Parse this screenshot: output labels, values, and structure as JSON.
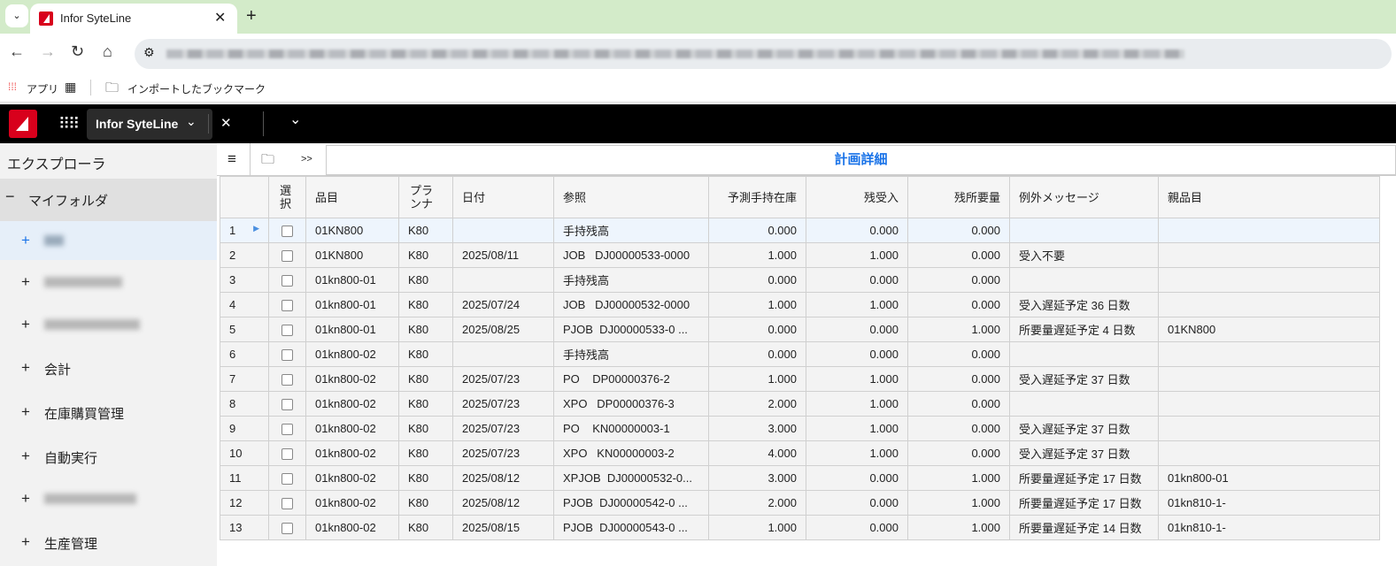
{
  "browser": {
    "tab_title": "Infor SyteLine",
    "bookmarks": [
      "アプリ",
      "インポートしたブックマーク"
    ]
  },
  "app": {
    "tab_label": "Infor SyteLine"
  },
  "sidebar": {
    "title": "エクスプローラ",
    "root": "マイフォルダ",
    "items": [
      {
        "label": "",
        "blurred": true
      },
      {
        "label": "",
        "blurred": true
      },
      {
        "label": "",
        "blurred": true
      },
      {
        "label": "会計"
      },
      {
        "label": "在庫購買管理"
      },
      {
        "label": "自動実行"
      },
      {
        "label": "",
        "blurred": true
      },
      {
        "label": "生産管理"
      }
    ]
  },
  "toolbar": {
    "expand": ">>",
    "form_title": "計画詳細"
  },
  "grid": {
    "headers": [
      "",
      "選択",
      "品目",
      "プランナ",
      "日付",
      "参照",
      "予測手持在庫",
      "残受入",
      "残所要量",
      "例外メッセージ",
      "親品目"
    ],
    "rows": [
      [
        "1",
        "01KN800",
        "K80",
        "",
        "手持残高",
        "0.000",
        "0.000",
        "0.000",
        "",
        ""
      ],
      [
        "2",
        "01KN800",
        "K80",
        "2025/08/11",
        "JOB   DJ00000533-0000",
        "1.000",
        "1.000",
        "0.000",
        "受入不要",
        ""
      ],
      [
        "3",
        "01kn800-01",
        "K80",
        "",
        "手持残高",
        "0.000",
        "0.000",
        "0.000",
        "",
        ""
      ],
      [
        "4",
        "01kn800-01",
        "K80",
        "2025/07/24",
        "JOB   DJ00000532-0000",
        "1.000",
        "1.000",
        "0.000",
        "受入遅延予定 36 日数",
        ""
      ],
      [
        "5",
        "01kn800-01",
        "K80",
        "2025/08/25",
        "PJOB  DJ00000533-0 ...",
        "0.000",
        "0.000",
        "1.000",
        "所要量遅延予定 4 日数",
        "01KN800"
      ],
      [
        "6",
        "01kn800-02",
        "K80",
        "",
        "手持残高",
        "0.000",
        "0.000",
        "0.000",
        "",
        ""
      ],
      [
        "7",
        "01kn800-02",
        "K80",
        "2025/07/23",
        "PO    DP00000376-2",
        "1.000",
        "1.000",
        "0.000",
        "受入遅延予定 37 日数",
        ""
      ],
      [
        "8",
        "01kn800-02",
        "K80",
        "2025/07/23",
        "XPO   DP00000376-3",
        "2.000",
        "1.000",
        "0.000",
        "",
        ""
      ],
      [
        "9",
        "01kn800-02",
        "K80",
        "2025/07/23",
        "PO    KN00000003-1",
        "3.000",
        "1.000",
        "0.000",
        "受入遅延予定 37 日数",
        ""
      ],
      [
        "10",
        "01kn800-02",
        "K80",
        "2025/07/23",
        "XPO   KN00000003-2",
        "4.000",
        "1.000",
        "0.000",
        "受入遅延予定 37 日数",
        ""
      ],
      [
        "11",
        "01kn800-02",
        "K80",
        "2025/08/12",
        "XPJOB  DJ00000532-0...",
        "3.000",
        "0.000",
        "1.000",
        "所要量遅延予定 17 日数",
        "01kn800-01"
      ],
      [
        "12",
        "01kn800-02",
        "K80",
        "2025/08/12",
        "PJOB  DJ00000542-0 ...",
        "2.000",
        "0.000",
        "1.000",
        "所要量遅延予定 17 日数",
        "01kn810-1-"
      ],
      [
        "13",
        "01kn800-02",
        "K80",
        "2025/08/15",
        "PJOB  DJ00000543-0 ...",
        "1.000",
        "0.000",
        "1.000",
        "所要量遅延予定 14 日数",
        "01kn810-1-"
      ]
    ],
    "selected_row": 1
  }
}
